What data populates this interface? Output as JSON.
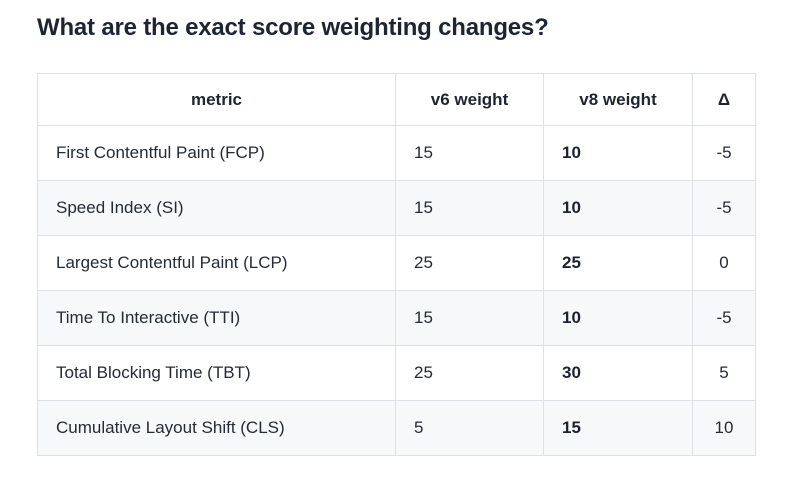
{
  "page": {
    "title": "What are the exact score weighting changes?"
  },
  "colors": {
    "heading_text": "#1e2532",
    "body_text": "#232b36",
    "table_border": "#dde1e7",
    "row_stripe": "#f7f8fa",
    "background": "#ffffff"
  },
  "table": {
    "columns": [
      {
        "key": "metric",
        "label": "metric"
      },
      {
        "key": "v6",
        "label": "v6 weight"
      },
      {
        "key": "v8",
        "label": "v8 weight"
      },
      {
        "key": "delta",
        "label": "Δ"
      }
    ],
    "rows": [
      {
        "metric": "First Contentful Paint (FCP)",
        "v6": "15",
        "v8": "10",
        "delta": "-5"
      },
      {
        "metric": "Speed Index (SI)",
        "v6": "15",
        "v8": "10",
        "delta": "-5"
      },
      {
        "metric": "Largest Contentful Paint (LCP)",
        "v6": "25",
        "v8": "25",
        "delta": "0"
      },
      {
        "metric": "Time To Interactive (TTI)",
        "v6": "15",
        "v8": "10",
        "delta": "-5"
      },
      {
        "metric": "Total Blocking Time (TBT)",
        "v6": "25",
        "v8": "30",
        "delta": "5"
      },
      {
        "metric": "Cumulative Layout Shift (CLS)",
        "v6": "5",
        "v8": "15",
        "delta": "10"
      }
    ]
  }
}
